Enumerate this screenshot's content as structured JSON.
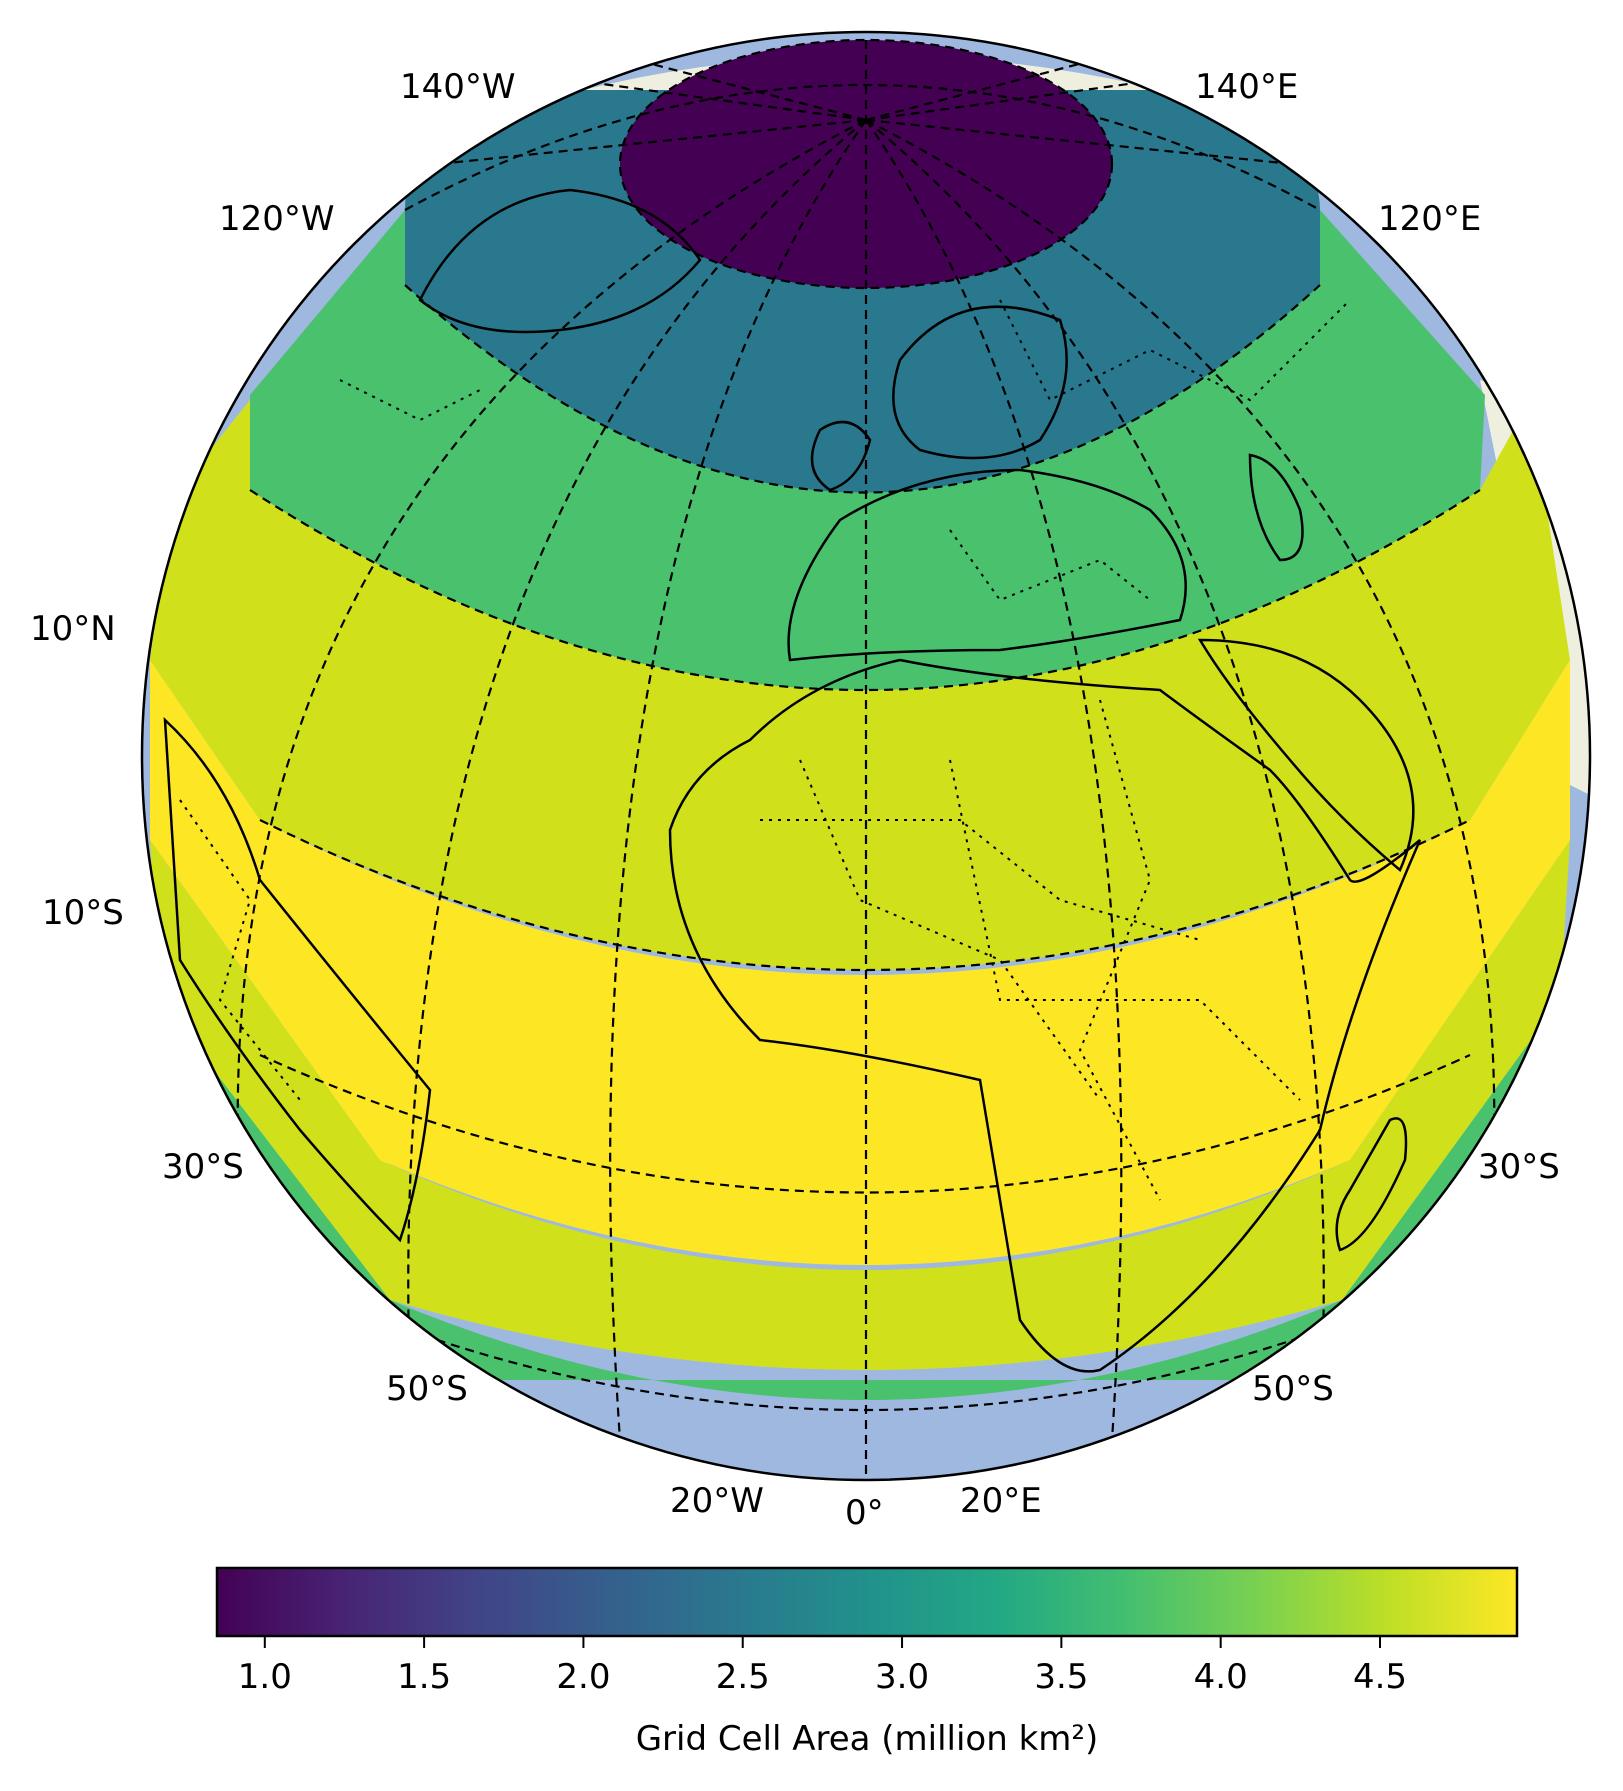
{
  "map": {
    "projection": "orthographic",
    "longitude_labels": [
      {
        "text": "140°W"
      },
      {
        "text": "140°E"
      },
      {
        "text": "120°W"
      },
      {
        "text": "120°E"
      },
      {
        "text": "20°W"
      },
      {
        "text": "0°"
      },
      {
        "text": "20°E"
      }
    ],
    "latitude_labels": [
      {
        "text": "10°N"
      },
      {
        "text": "10°S"
      },
      {
        "text": "30°S"
      },
      {
        "text": "30°S"
      },
      {
        "text": "50°S"
      },
      {
        "text": "50°S"
      }
    ],
    "bands": [
      {
        "name": "polar-cap",
        "value": 0.87,
        "color": "#440154"
      },
      {
        "name": "high-latitude",
        "value": 2.55,
        "color": "#2a788e"
      },
      {
        "name": "mid-latitude-north",
        "value": 3.65,
        "color": "#4ac16d"
      },
      {
        "name": "subtropical-north",
        "value": 4.5,
        "color": "#d0e11c"
      },
      {
        "name": "equatorial",
        "value": 4.92,
        "color": "#fde725"
      },
      {
        "name": "subtropical-south",
        "value": 4.5,
        "color": "#d0e11c"
      },
      {
        "name": "mid-latitude-south",
        "value": 3.65,
        "color": "#4ac16d"
      }
    ],
    "ocean_color": "#9fb8e0",
    "land_color": "#efefe0"
  },
  "colorbar": {
    "label": "Grid Cell Area (million km²)",
    "min": 0.85,
    "max": 4.93,
    "ticks": [
      "1.0",
      "1.5",
      "2.0",
      "2.5",
      "3.0",
      "3.5",
      "4.0",
      "4.5"
    ],
    "tick_values": [
      1.0,
      1.5,
      2.0,
      2.5,
      3.0,
      3.5,
      4.0,
      4.5
    ],
    "colormap": "viridis"
  }
}
